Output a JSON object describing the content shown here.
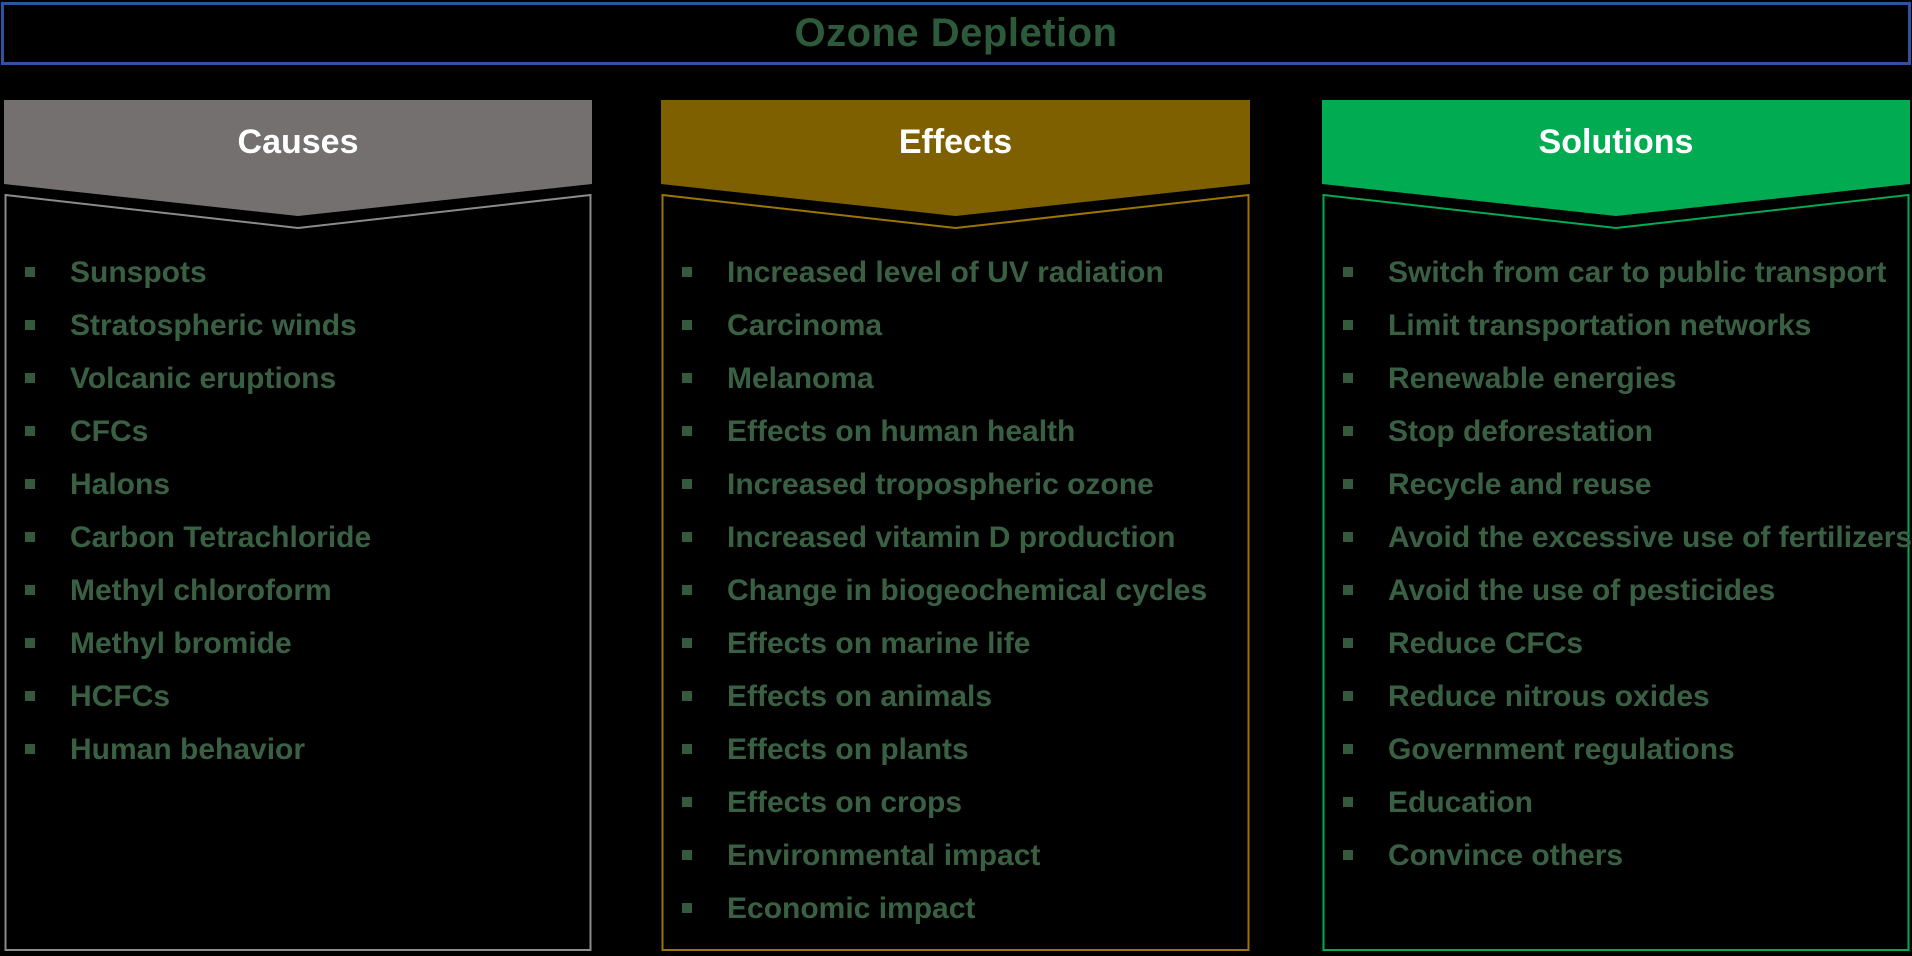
{
  "title": {
    "text": "Ozone Depletion"
  },
  "accent_colors": {
    "title_border_blue": "#2d53a1",
    "title_text_green": "#2e5a3c",
    "item_text_green": "#3a6044",
    "header_label_white": "#ffffff"
  },
  "columns": [
    {
      "header": "Causes",
      "colors": {
        "header": "#747070",
        "border": "#8c8a8a"
      },
      "items": [
        "Sunspots",
        "Stratospheric winds",
        "Volcanic eruptions",
        "CFCs",
        "Halons",
        "Carbon Tetrachloride",
        "Methyl chloroform",
        "Methyl bromide",
        "HCFCs",
        "Human behavior"
      ]
    },
    {
      "header": "Effects",
      "colors": {
        "header": "#7f6000",
        "border": "#9c7500"
      },
      "items": [
        "Increased level of UV radiation",
        "Carcinoma",
        "Melanoma",
        "Effects on human health",
        "Increased tropospheric ozone",
        "Increased vitamin D production",
        "Change in biogeochemical cycles",
        "Effects on marine life",
        "Effects on animals",
        "Effects on plants",
        "Effects on crops",
        "Environmental impact",
        "Economic impact"
      ]
    },
    {
      "header": "Solutions",
      "colors": {
        "header": "#00ab52",
        "border": "#00ab52"
      },
      "items": [
        "Switch from car to public transport",
        "Limit transportation networks",
        "Renewable energies",
        "Stop deforestation",
        "Recycle and reuse",
        "Avoid the excessive use of fertilizers",
        "Avoid the use of pesticides",
        "Reduce CFCs",
        "Reduce nitrous oxides",
        "Government regulations",
        "Education",
        "Convince others"
      ]
    }
  ]
}
